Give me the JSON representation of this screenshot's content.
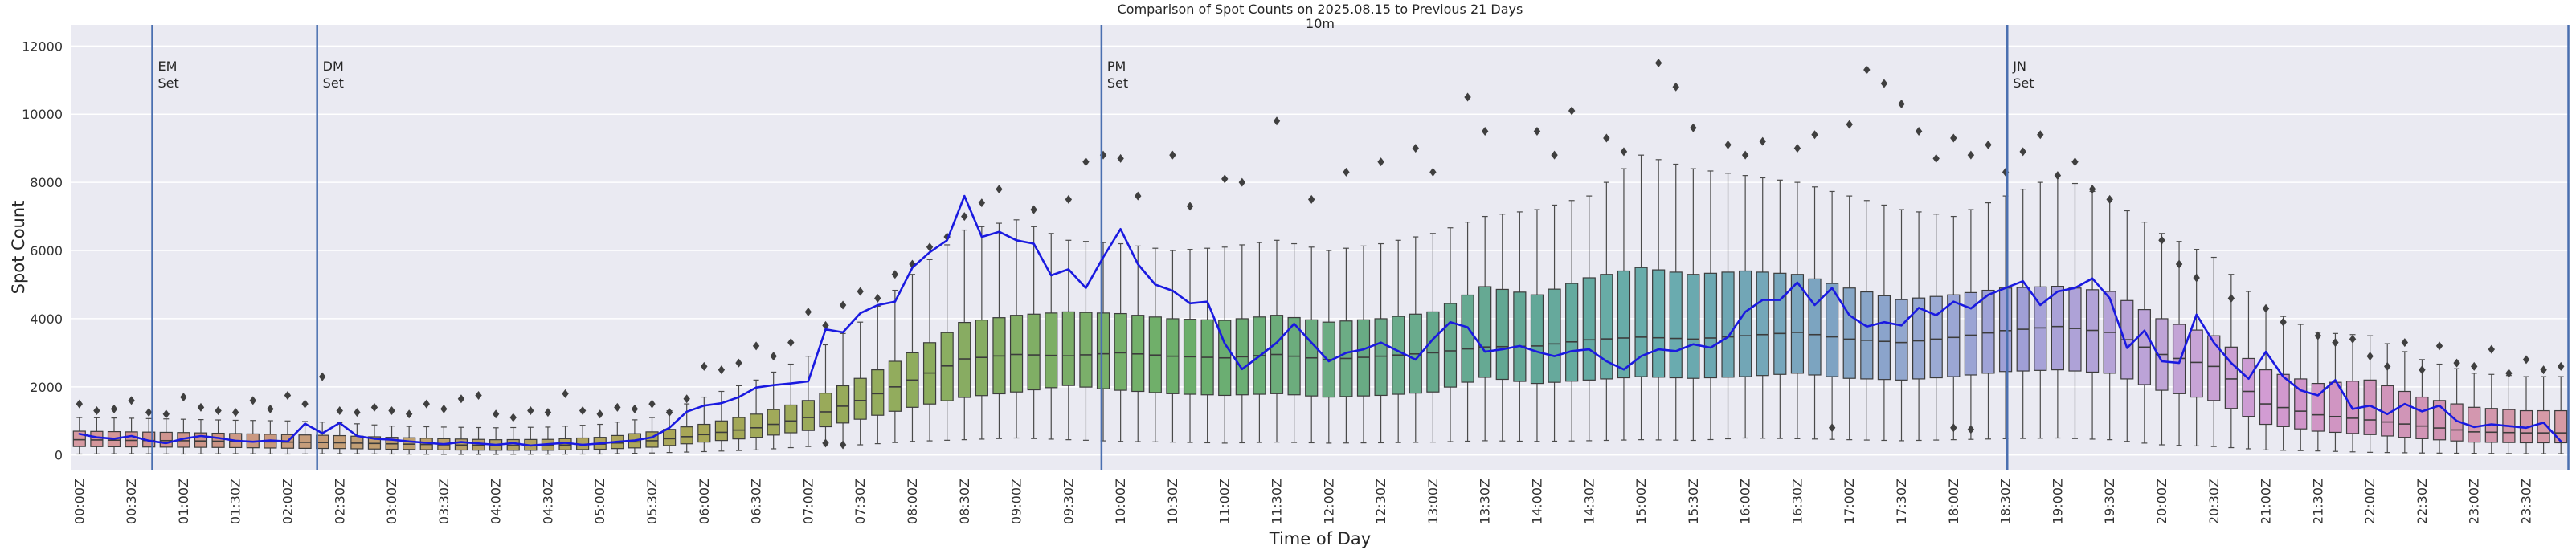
{
  "figure": {
    "title": "Comparison of Spot Counts on 2025.08.15 to Previous 21 Days",
    "subtitle": "10m",
    "xlabel": "Time of Day",
    "ylabel": "Spot Count"
  },
  "colors": {
    "figure_bg": "#ffffff",
    "axes_bg": "#eaeaf2",
    "grid": "#ffffff",
    "text": "#262626",
    "today_line": "#1a1ae0",
    "event_line": "#4a6fb0",
    "box_edge": "#3c3c3c",
    "whisker": "#4a4a4a",
    "outlier": "#3f3f3f"
  },
  "chart_data": {
    "type": "boxplot+line",
    "title": "Comparison of Spot Counts on 2025.08.15 to Previous 21 Days",
    "subtitle": "10m",
    "xlabel": "Time of Day",
    "ylabel": "Spot Count",
    "grid": true,
    "legend": null,
    "bin_minutes": 10,
    "n_bins": 144,
    "ylim": [
      -430,
      12620
    ],
    "yticks": [
      0,
      2000,
      4000,
      6000,
      8000,
      10000,
      12000
    ],
    "x_tick_labels": [
      "00:00Z",
      "00:30Z",
      "01:00Z",
      "01:30Z",
      "02:00Z",
      "02:30Z",
      "03:00Z",
      "03:30Z",
      "04:00Z",
      "04:30Z",
      "05:00Z",
      "05:30Z",
      "06:00Z",
      "06:30Z",
      "07:00Z",
      "07:30Z",
      "08:00Z",
      "08:30Z",
      "09:00Z",
      "09:30Z",
      "10:00Z",
      "10:30Z",
      "11:00Z",
      "11:30Z",
      "12:00Z",
      "12:30Z",
      "13:00Z",
      "13:30Z",
      "14:00Z",
      "14:30Z",
      "15:00Z",
      "15:30Z",
      "16:00Z",
      "16:30Z",
      "17:00Z",
      "17:30Z",
      "18:00Z",
      "18:30Z",
      "19:00Z",
      "19:30Z",
      "20:00Z",
      "20:30Z",
      "21:00Z",
      "21:30Z",
      "22:00Z",
      "22:30Z",
      "23:00Z",
      "23:30Z"
    ],
    "today_line": {
      "name": "2025.08.15",
      "values_10min": [
        620,
        520,
        480,
        560,
        420,
        350,
        480,
        560,
        500,
        420,
        390,
        430,
        400,
        920,
        640,
        940,
        560,
        480,
        450,
        400,
        360,
        320,
        380,
        340,
        300,
        350,
        280,
        320,
        360,
        300,
        340,
        390,
        430,
        520,
        800,
        1270,
        1450,
        1520,
        1700,
        1980,
        2050,
        2100,
        2160,
        3690,
        3600,
        4160,
        4400,
        4500,
        5500,
        5950,
        6300,
        7600,
        6400,
        6550,
        6300,
        6200,
        5270,
        5450,
        4900,
        5800,
        6630,
        5600,
        5000,
        4820,
        4450,
        4500,
        3270,
        2520,
        2900,
        3300,
        3850,
        3300,
        2750,
        3000,
        3100,
        3300,
        3050,
        2800,
        3400,
        3900,
        3750,
        3030,
        3100,
        3200,
        3030,
        2900,
        3050,
        3100,
        2750,
        2510,
        2900,
        3100,
        3050,
        3250,
        3150,
        3460,
        4200,
        4550,
        4550,
        5060,
        4400,
        4900,
        4100,
        3770,
        3900,
        3800,
        4320,
        4100,
        4500,
        4300,
        4700,
        4900,
        5100,
        4400,
        4800,
        4900,
        5180,
        4600,
        3140,
        3650,
        2750,
        2700,
        4120,
        3300,
        2700,
        2240,
        3030,
        2300,
        1900,
        1750,
        2200,
        1350,
        1450,
        1200,
        1500,
        1280,
        1450,
        1000,
        820,
        900,
        850,
        800,
        950,
        400
      ]
    },
    "previous_21_days_box_stats_30min": {
      "times": [
        "00:00",
        "00:30",
        "01:00",
        "01:30",
        "02:00",
        "02:30",
        "03:00",
        "03:30",
        "04:00",
        "04:30",
        "05:00",
        "05:30",
        "06:00",
        "06:30",
        "07:00",
        "07:30",
        "08:00",
        "08:30",
        "09:00",
        "09:30",
        "10:00",
        "10:30",
        "11:00",
        "11:30",
        "12:00",
        "12:30",
        "13:00",
        "13:30",
        "14:00",
        "14:30",
        "15:00",
        "15:30",
        "16:00",
        "16:30",
        "17:00",
        "17:30",
        "18:00",
        "18:30",
        "19:00",
        "19:30",
        "20:00",
        "20:30",
        "21:00",
        "21:30",
        "22:00",
        "22:30",
        "23:00",
        "23:30"
      ],
      "median": [
        450,
        430,
        420,
        400,
        380,
        360,
        330,
        300,
        280,
        280,
        320,
        420,
        600,
        800,
        1100,
        1600,
        2200,
        2820,
        2950,
        2910,
        3000,
        2900,
        2850,
        2950,
        2800,
        2900,
        3000,
        3170,
        3200,
        3380,
        3460,
        3400,
        3500,
        3600,
        3400,
        3300,
        3450,
        3650,
        3770,
        3600,
        2950,
        2600,
        1500,
        1180,
        1030,
        850,
        680,
        650
      ],
      "q1": [
        250,
        240,
        230,
        220,
        200,
        190,
        170,
        150,
        140,
        140,
        170,
        230,
        380,
        520,
        720,
        1050,
        1400,
        1690,
        1850,
        2040,
        1900,
        1800,
        1750,
        1800,
        1700,
        1750,
        1850,
        2280,
        2100,
        2200,
        2300,
        2250,
        2300,
        2400,
        2250,
        2200,
        2300,
        2450,
        2500,
        2400,
        1900,
        1600,
        900,
        700,
        600,
        480,
        380,
        360
      ],
      "q3": [
        700,
        680,
        660,
        630,
        600,
        570,
        520,
        480,
        450,
        460,
        520,
        680,
        900,
        1200,
        1600,
        2250,
        3000,
        3890,
        4100,
        4200,
        4150,
        4000,
        3950,
        4100,
        3900,
        4000,
        4200,
        4940,
        4700,
        5200,
        5500,
        5300,
        5400,
        5300,
        4900,
        4560,
        4700,
        4900,
        4950,
        4800,
        4000,
        3500,
        2500,
        2100,
        2200,
        1700,
        1400,
        1300
      ],
      "whisker_lo": [
        30,
        40,
        30,
        40,
        30,
        40,
        30,
        20,
        20,
        25,
        30,
        60,
        100,
        150,
        250,
        300,
        400,
        450,
        500,
        450,
        400,
        380,
        350,
        380,
        350,
        360,
        380,
        420,
        400,
        420,
        450,
        430,
        500,
        480,
        450,
        420,
        450,
        480,
        500,
        450,
        300,
        250,
        150,
        120,
        80,
        60,
        50,
        40
      ],
      "whisker_hi": [
        1100,
        1080,
        1050,
        1020,
        1000,
        950,
        850,
        820,
        800,
        820,
        900,
        1100,
        1700,
        2200,
        2900,
        3900,
        5300,
        6600,
        6900,
        6300,
        6200,
        6000,
        6100,
        6300,
        6000,
        6200,
        6500,
        7000,
        7200,
        7600,
        8800,
        8400,
        8200,
        8000,
        7600,
        7200,
        7000,
        7600,
        8200,
        7500,
        6500,
        5800,
        4300,
        3600,
        3500,
        2800,
        2400,
        2300
      ]
    },
    "outliers": [
      [
        0,
        1500
      ],
      [
        1,
        1300
      ],
      [
        2,
        1350
      ],
      [
        3,
        1600
      ],
      [
        4,
        1250
      ],
      [
        5,
        1200
      ],
      [
        6,
        1700
      ],
      [
        7,
        1400
      ],
      [
        8,
        1300
      ],
      [
        9,
        1250
      ],
      [
        10,
        1600
      ],
      [
        11,
        1350
      ],
      [
        12,
        1750
      ],
      [
        13,
        1500
      ],
      [
        14,
        2300
      ],
      [
        15,
        1300
      ],
      [
        16,
        1250
      ],
      [
        17,
        1400
      ],
      [
        18,
        1300
      ],
      [
        19,
        1200
      ],
      [
        20,
        1500
      ],
      [
        21,
        1350
      ],
      [
        22,
        1650
      ],
      [
        23,
        1750
      ],
      [
        24,
        1200
      ],
      [
        25,
        1100
      ],
      [
        26,
        1300
      ],
      [
        27,
        1250
      ],
      [
        28,
        1800
      ],
      [
        29,
        1300
      ],
      [
        30,
        1200
      ],
      [
        31,
        1400
      ],
      [
        32,
        1350
      ],
      [
        33,
        1500
      ],
      [
        34,
        1250
      ],
      [
        35,
        1650
      ],
      [
        36,
        2600
      ],
      [
        37,
        2500
      ],
      [
        38,
        2700
      ],
      [
        39,
        3200
      ],
      [
        40,
        2900
      ],
      [
        41,
        3300
      ],
      [
        42,
        4200
      ],
      [
        43,
        3800
      ],
      [
        43,
        350
      ],
      [
        44,
        4400
      ],
      [
        44,
        300
      ],
      [
        45,
        4800
      ],
      [
        46,
        4600
      ],
      [
        47,
        5300
      ],
      [
        48,
        5600
      ],
      [
        49,
        6100
      ],
      [
        50,
        6400
      ],
      [
        51,
        7000
      ],
      [
        52,
        7400
      ],
      [
        53,
        7800
      ],
      [
        55,
        7200
      ],
      [
        57,
        7500
      ],
      [
        58,
        8600
      ],
      [
        59,
        8800
      ],
      [
        60,
        8700
      ],
      [
        61,
        7600
      ],
      [
        63,
        8800
      ],
      [
        64,
        7300
      ],
      [
        66,
        8100
      ],
      [
        67,
        8000
      ],
      [
        69,
        9800
      ],
      [
        71,
        7500
      ],
      [
        73,
        8300
      ],
      [
        75,
        8600
      ],
      [
        77,
        9000
      ],
      [
        78,
        8300
      ],
      [
        80,
        10500
      ],
      [
        81,
        9500
      ],
      [
        84,
        9500
      ],
      [
        85,
        8800
      ],
      [
        86,
        10100
      ],
      [
        88,
        9300
      ],
      [
        89,
        8900
      ],
      [
        91,
        11500
      ],
      [
        92,
        10800
      ],
      [
        93,
        9600
      ],
      [
        95,
        9100
      ],
      [
        96,
        8800
      ],
      [
        97,
        9200
      ],
      [
        99,
        9000
      ],
      [
        100,
        9400
      ],
      [
        101,
        800
      ],
      [
        102,
        9700
      ],
      [
        103,
        11300
      ],
      [
        104,
        10900
      ],
      [
        105,
        10300
      ],
      [
        106,
        9500
      ],
      [
        107,
        8700
      ],
      [
        108,
        9300
      ],
      [
        108,
        800
      ],
      [
        109,
        8800
      ],
      [
        109,
        750
      ],
      [
        110,
        9100
      ],
      [
        111,
        8300
      ],
      [
        112,
        8900
      ],
      [
        113,
        9400
      ],
      [
        114,
        8200
      ],
      [
        115,
        8600
      ],
      [
        116,
        7800
      ],
      [
        117,
        7500
      ],
      [
        120,
        6300
      ],
      [
        121,
        5600
      ],
      [
        122,
        5200
      ],
      [
        124,
        4600
      ],
      [
        126,
        4300
      ],
      [
        127,
        3900
      ],
      [
        129,
        3500
      ],
      [
        130,
        3300
      ],
      [
        131,
        3400
      ],
      [
        132,
        2900
      ],
      [
        133,
        2600
      ],
      [
        134,
        3300
      ],
      [
        135,
        2500
      ],
      [
        136,
        3200
      ],
      [
        137,
        2700
      ],
      [
        138,
        2600
      ],
      [
        139,
        3100
      ],
      [
        140,
        2400
      ],
      [
        141,
        2800
      ],
      [
        142,
        2500
      ],
      [
        143,
        2600
      ]
    ],
    "event_lines": [
      {
        "label_lines": [
          "EM",
          "Set"
        ],
        "time": "00:42"
      },
      {
        "label_lines": [
          "DM",
          "Set"
        ],
        "time": "02:17"
      },
      {
        "label_lines": [
          "PM",
          "Set"
        ],
        "time": "09:49"
      },
      {
        "label_lines": [
          "JN",
          "Set"
        ],
        "time": "18:31"
      },
      {
        "label_lines": [],
        "time": "23:59"
      }
    ]
  }
}
